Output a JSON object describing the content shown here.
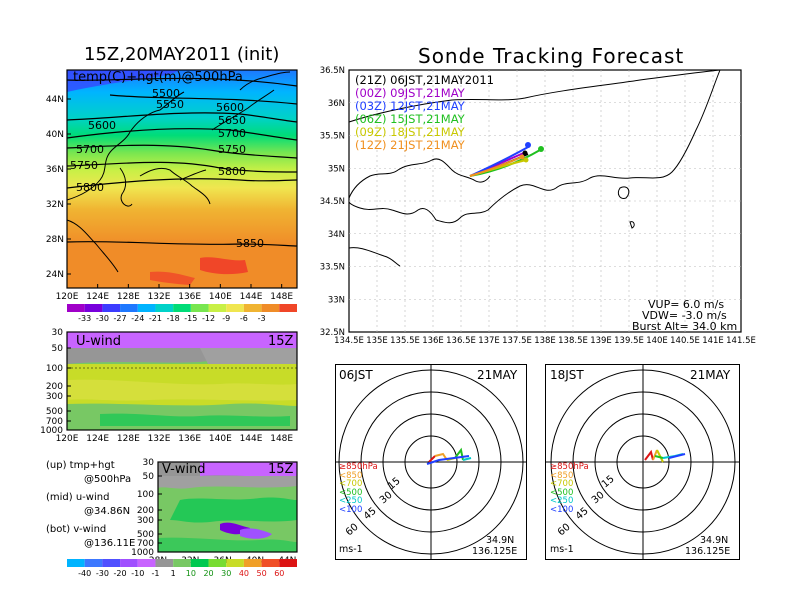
{
  "left_title": "15Z,20MAY2011 (init)",
  "right_title": "Sonde Tracking Forecast",
  "map500": {
    "label": "temp(C)+hgt(m)@500hPa",
    "lon_ticks": [
      "120E",
      "124E",
      "128E",
      "132E",
      "136E",
      "140E",
      "144E",
      "148E"
    ],
    "lat_ticks": [
      "44N",
      "40N",
      "36N",
      "32N",
      "28N",
      "24N"
    ],
    "contour_labels": [
      "5500",
      "5550",
      "5600",
      "5650",
      "5600",
      "5700",
      "5700",
      "5750",
      "5750",
      "5800",
      "5800",
      "5850"
    ]
  },
  "temp_colorbar": {
    "labels": [
      "-33",
      "-30",
      "-27",
      "-24",
      "-21",
      "-18",
      "-15",
      "-12",
      "-9",
      "-6",
      "-3"
    ],
    "colors": [
      "#a000c8",
      "#7800dc",
      "#3c3cff",
      "#1e78ff",
      "#00b4ff",
      "#00d2c8",
      "#00dc78",
      "#78e650",
      "#c8f046",
      "#f0e650",
      "#f0b432",
      "#f08c28",
      "#f04628"
    ]
  },
  "uwind": {
    "label": "U-wind",
    "time": "15Z",
    "lon_ticks": [
      "120E",
      "124E",
      "128E",
      "132E",
      "136E",
      "140E",
      "144E",
      "148E"
    ],
    "p_ticks": [
      "30",
      "50",
      "100",
      "200",
      "300",
      "500",
      "700",
      "1000"
    ]
  },
  "vwind": {
    "label": "V-wind",
    "time": "15Z",
    "lat_ticks": [
      "28N",
      "32N",
      "36N",
      "40N",
      "44N"
    ],
    "p_ticks": [
      "30",
      "50",
      "100",
      "200",
      "300",
      "500",
      "700",
      "1000"
    ]
  },
  "legend_text": {
    "up1": "(up) tmp+hgt",
    "up2": "@500hPa",
    "mid1": "(mid) u-wind",
    "mid2": "@34.86N",
    "bot1": "(bot) v-wind",
    "bot2": "@136.11E"
  },
  "wind_colorbar": {
    "labels": [
      "-40",
      "-30",
      "-20",
      "-10",
      "-1",
      "1",
      "10",
      "20",
      "30",
      "40",
      "50",
      "60"
    ],
    "colors": [
      "#00b4ff",
      "#3c78ff",
      "#5050ff",
      "#a050ff",
      "#c864ff",
      "#969696",
      "#78c864",
      "#00c850",
      "#78dc32",
      "#c8dc28",
      "#f0a028",
      "#f05028",
      "#dc1414"
    ]
  },
  "tracking_map": {
    "lon_ticks": [
      "134.5E",
      "135E",
      "135.5E",
      "136E",
      "136.5E",
      "137E",
      "137.5E",
      "138E",
      "138.5E",
      "139E",
      "139.5E",
      "140E",
      "140.5E",
      "141E",
      "141.5E"
    ],
    "lat_ticks": [
      "36.5N",
      "36N",
      "35.5N",
      "35N",
      "34.5N",
      "34N",
      "33.5N",
      "33N",
      "32.5N"
    ],
    "legend": [
      {
        "text": "(21Z)  06JST,21MAY2011",
        "color": "#000000"
      },
      {
        "text": "(00Z)  09JST,21MAY",
        "color": "#a000c8"
      },
      {
        "text": "(03Z)  12JST,21MAY",
        "color": "#2040ff"
      },
      {
        "text": "(06Z)  15JST,21MAY",
        "color": "#20c020"
      },
      {
        "text": "(09Z)  18JST,21MAY",
        "color": "#c8c800"
      },
      {
        "text": "(12Z)  21JST,21MAY",
        "color": "#f09020"
      }
    ],
    "vup": "VUP=  6.0  m/s",
    "vdw": "VDW=  -3.0  m/s",
    "burst": "Burst  Alt=  34.0  km"
  },
  "hodo1": {
    "time": "06JST",
    "date": "21MAY",
    "rings": [
      "15",
      "30",
      "45",
      "60"
    ],
    "levels": [
      {
        "text": "≥850hPa",
        "color": "#dc1414"
      },
      {
        "text": "<850",
        "color": "#f0a028"
      },
      {
        "text": "<700",
        "color": "#c8c800"
      },
      {
        "text": "<500",
        "color": "#20c020"
      },
      {
        "text": "<250",
        "color": "#00c8c8"
      },
      {
        "text": "<100",
        "color": "#2040ff"
      }
    ],
    "unit": "ms-1",
    "lat": "34.9N",
    "lon": "136.125E"
  },
  "hodo2": {
    "time": "18JST",
    "date": "21MAY",
    "rings": [
      "15",
      "30",
      "45",
      "60"
    ],
    "levels": [
      {
        "text": "≥850hPa",
        "color": "#dc1414"
      },
      {
        "text": "<850",
        "color": "#f0a028"
      },
      {
        "text": "<700",
        "color": "#c8c800"
      },
      {
        "text": "<500",
        "color": "#20c020"
      },
      {
        "text": "<250",
        "color": "#00c8c8"
      },
      {
        "text": "<100",
        "color": "#2040ff"
      }
    ],
    "unit": "ms-1",
    "lat": "34.9N",
    "lon": "136.125E"
  }
}
